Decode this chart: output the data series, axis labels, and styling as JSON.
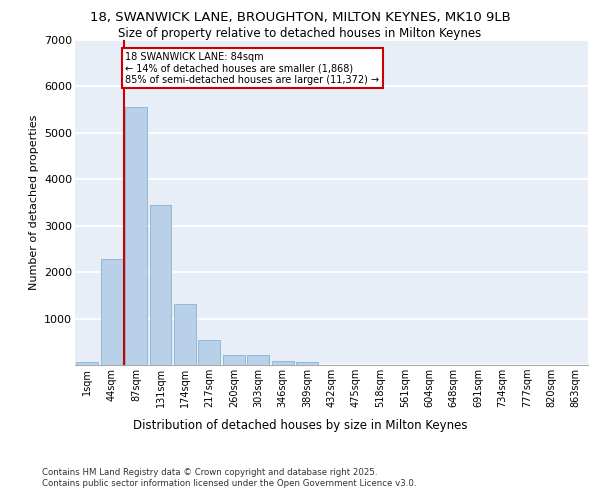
{
  "title_line1": "18, SWANWICK LANE, BROUGHTON, MILTON KEYNES, MK10 9LB",
  "title_line2": "Size of property relative to detached houses in Milton Keynes",
  "xlabel": "Distribution of detached houses by size in Milton Keynes",
  "ylabel": "Number of detached properties",
  "footer_line1": "Contains HM Land Registry data © Crown copyright and database right 2025.",
  "footer_line2": "Contains public sector information licensed under the Open Government Licence v3.0.",
  "annotation_title": "18 SWANWICK LANE: 84sqm",
  "annotation_line1": "← 14% of detached houses are smaller (1,868)",
  "annotation_line2": "85% of semi-detached houses are larger (11,372) →",
  "bar_color": "#b8d0e8",
  "bar_edge_color": "#7aaac8",
  "vline_color": "#cc0000",
  "annotation_box_color": "#cc0000",
  "background_color": "#e8eef8",
  "grid_color": "#ffffff",
  "categories": [
    "1sqm",
    "44sqm",
    "87sqm",
    "131sqm",
    "174sqm",
    "217sqm",
    "260sqm",
    "303sqm",
    "346sqm",
    "389sqm",
    "432sqm",
    "475sqm",
    "518sqm",
    "561sqm",
    "604sqm",
    "648sqm",
    "691sqm",
    "734sqm",
    "777sqm",
    "820sqm",
    "863sqm"
  ],
  "values": [
    75,
    2280,
    5560,
    3450,
    1320,
    530,
    225,
    210,
    90,
    55,
    0,
    0,
    0,
    0,
    0,
    0,
    0,
    0,
    0,
    0,
    0
  ],
  "ylim": [
    0,
    7000
  ],
  "yticks": [
    0,
    1000,
    2000,
    3000,
    4000,
    5000,
    6000,
    7000
  ]
}
